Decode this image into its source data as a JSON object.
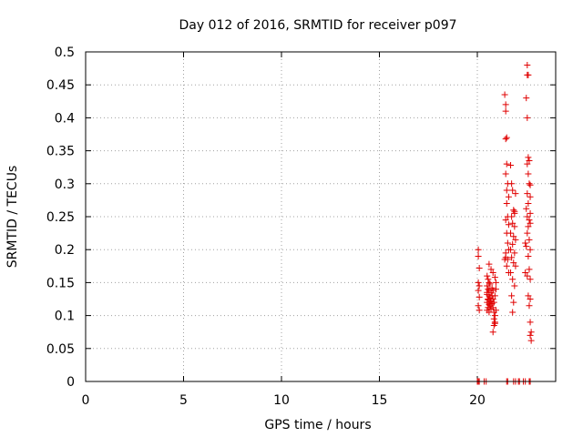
{
  "chart_data": {
    "type": "scatter",
    "title": "Day 012 of 2016, SRMTID for receiver p097",
    "xlabel": "GPS time / hours",
    "ylabel": "SRMTID / TECUs",
    "xlim": [
      0,
      24
    ],
    "ylim": [
      0,
      0.5
    ],
    "xticks": [
      0,
      5,
      10,
      15,
      20
    ],
    "xtick_labels": [
      "0",
      "5",
      "10",
      "15",
      "20"
    ],
    "yticks": [
      0,
      0.05,
      0.1,
      0.15,
      0.2,
      0.25,
      0.3,
      0.35,
      0.4,
      0.45,
      0.5
    ],
    "ytick_labels": [
      "0",
      "0.05",
      "0.1",
      "0.15",
      "0.2",
      "0.25",
      "0.3",
      "0.35",
      "0.4",
      "0.45",
      "0.5"
    ],
    "grid": true,
    "marker": "+",
    "color": "#e00000",
    "series": [
      {
        "points": [
          [
            20.0,
            0.0
          ],
          [
            20.05,
            0.0
          ],
          [
            20.1,
            0.0
          ],
          [
            20.35,
            0.0
          ],
          [
            20.45,
            0.0
          ],
          [
            21.5,
            0.0
          ],
          [
            21.55,
            0.0
          ],
          [
            21.85,
            0.0
          ],
          [
            21.95,
            0.0
          ],
          [
            22.1,
            0.0
          ],
          [
            22.15,
            0.0
          ],
          [
            22.35,
            0.0
          ],
          [
            22.45,
            0.0
          ],
          [
            22.65,
            0.0
          ],
          [
            22.7,
            0.0
          ],
          [
            20.05,
            0.2
          ],
          [
            20.05,
            0.19
          ],
          [
            20.1,
            0.172
          ],
          [
            20.05,
            0.15
          ],
          [
            20.1,
            0.145
          ],
          [
            20.05,
            0.138
          ],
          [
            20.1,
            0.128
          ],
          [
            20.05,
            0.115
          ],
          [
            20.1,
            0.108
          ],
          [
            20.5,
            0.16
          ],
          [
            20.55,
            0.155
          ],
          [
            20.6,
            0.15
          ],
          [
            20.65,
            0.148
          ],
          [
            20.5,
            0.145
          ],
          [
            20.55,
            0.14
          ],
          [
            20.6,
            0.138
          ],
          [
            20.7,
            0.135
          ],
          [
            20.5,
            0.132
          ],
          [
            20.6,
            0.13
          ],
          [
            20.65,
            0.127
          ],
          [
            20.55,
            0.124
          ],
          [
            20.7,
            0.122
          ],
          [
            20.5,
            0.12
          ],
          [
            20.6,
            0.117
          ],
          [
            20.65,
            0.115
          ],
          [
            20.55,
            0.112
          ],
          [
            20.7,
            0.11
          ],
          [
            20.5,
            0.108
          ],
          [
            20.6,
            0.105
          ],
          [
            20.75,
            0.142
          ],
          [
            20.8,
            0.138
          ],
          [
            20.75,
            0.13
          ],
          [
            20.8,
            0.125
          ],
          [
            20.85,
            0.12
          ],
          [
            20.8,
            0.112
          ],
          [
            20.85,
            0.105
          ],
          [
            20.9,
            0.1
          ],
          [
            20.85,
            0.095
          ],
          [
            20.9,
            0.09
          ],
          [
            20.85,
            0.085
          ],
          [
            20.9,
            0.088
          ],
          [
            20.8,
            0.075
          ],
          [
            20.6,
            0.178
          ],
          [
            20.7,
            0.17
          ],
          [
            20.8,
            0.165
          ],
          [
            20.9,
            0.158
          ],
          [
            20.95,
            0.15
          ],
          [
            20.95,
            0.14
          ],
          [
            20.9,
            0.13
          ],
          [
            20.55,
            0.125
          ],
          [
            20.65,
            0.118
          ],
          [
            20.75,
            0.118
          ],
          [
            20.5,
            0.135
          ],
          [
            20.95,
            0.108
          ],
          [
            21.4,
            0.435
          ],
          [
            21.45,
            0.42
          ],
          [
            21.45,
            0.41
          ],
          [
            21.5,
            0.37
          ],
          [
            21.45,
            0.368
          ],
          [
            21.5,
            0.33
          ],
          [
            21.45,
            0.315
          ],
          [
            21.55,
            0.3
          ],
          [
            21.5,
            0.29
          ],
          [
            21.6,
            0.28
          ],
          [
            21.5,
            0.27
          ],
          [
            21.55,
            0.25
          ],
          [
            21.45,
            0.245
          ],
          [
            21.6,
            0.238
          ],
          [
            21.5,
            0.225
          ],
          [
            21.55,
            0.21
          ],
          [
            21.6,
            0.2
          ],
          [
            21.45,
            0.195
          ],
          [
            21.55,
            0.185
          ],
          [
            21.5,
            0.175
          ],
          [
            21.6,
            0.165
          ],
          [
            21.45,
            0.188
          ],
          [
            21.4,
            0.185
          ],
          [
            21.7,
            0.328
          ],
          [
            21.75,
            0.3
          ],
          [
            21.8,
            0.29
          ],
          [
            21.85,
            0.26
          ],
          [
            21.9,
            0.255
          ],
          [
            21.75,
            0.25
          ],
          [
            21.8,
            0.24
          ],
          [
            21.9,
            0.235
          ],
          [
            21.7,
            0.225
          ],
          [
            21.85,
            0.22
          ],
          [
            21.95,
            0.215
          ],
          [
            21.8,
            0.208
          ],
          [
            21.7,
            0.2
          ],
          [
            21.9,
            0.195
          ],
          [
            21.75,
            0.188
          ],
          [
            21.85,
            0.18
          ],
          [
            21.95,
            0.175
          ],
          [
            21.7,
            0.165
          ],
          [
            21.8,
            0.155
          ],
          [
            21.9,
            0.145
          ],
          [
            21.75,
            0.13
          ],
          [
            21.85,
            0.12
          ],
          [
            21.8,
            0.105
          ],
          [
            21.95,
            0.285
          ],
          [
            21.9,
            0.258
          ],
          [
            22.55,
            0.48
          ],
          [
            22.6,
            0.465
          ],
          [
            22.55,
            0.465
          ],
          [
            22.5,
            0.43
          ],
          [
            22.55,
            0.4
          ],
          [
            22.6,
            0.34
          ],
          [
            22.65,
            0.335
          ],
          [
            22.55,
            0.33
          ],
          [
            22.6,
            0.315
          ],
          [
            22.65,
            0.3
          ],
          [
            22.7,
            0.298
          ],
          [
            22.55,
            0.285
          ],
          [
            22.7,
            0.28
          ],
          [
            22.6,
            0.27
          ],
          [
            22.5,
            0.262
          ],
          [
            22.7,
            0.255
          ],
          [
            22.55,
            0.25
          ],
          [
            22.65,
            0.245
          ],
          [
            22.7,
            0.24
          ],
          [
            22.6,
            0.235
          ],
          [
            22.55,
            0.225
          ],
          [
            22.65,
            0.215
          ],
          [
            22.5,
            0.205
          ],
          [
            22.7,
            0.2
          ],
          [
            22.6,
            0.19
          ],
          [
            22.65,
            0.17
          ],
          [
            22.55,
            0.16
          ],
          [
            22.7,
            0.155
          ],
          [
            22.6,
            0.13
          ],
          [
            22.7,
            0.125
          ],
          [
            22.65,
            0.115
          ],
          [
            22.7,
            0.09
          ],
          [
            22.75,
            0.075
          ],
          [
            22.7,
            0.07
          ],
          [
            22.75,
            0.062
          ],
          [
            22.45,
            0.165
          ],
          [
            22.45,
            0.21
          ]
        ]
      }
    ]
  }
}
